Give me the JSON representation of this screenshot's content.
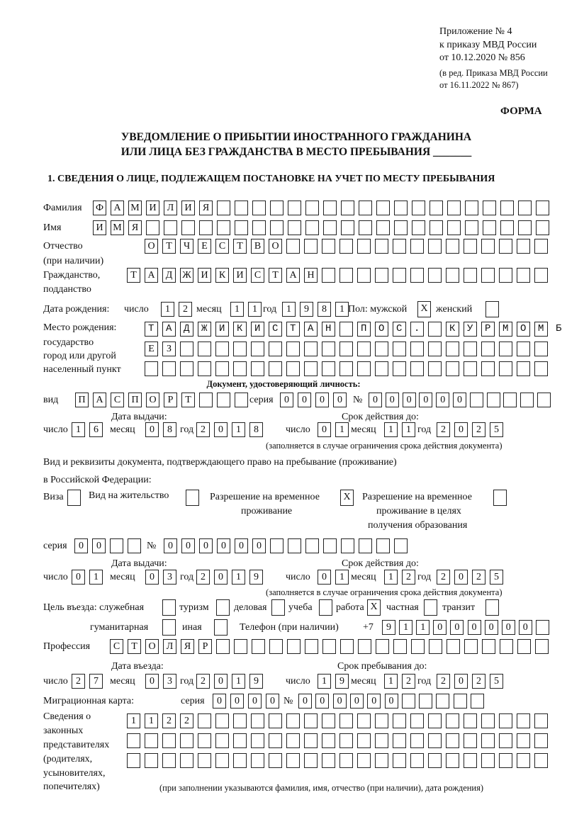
{
  "header": {
    "line1": "Приложение № 4",
    "line2": "к приказу МВД России",
    "line3": "от 10.12.2020 № 856",
    "line4": "(в ред. Приказа МВД России",
    "line5": "от 16.11.2022 № 867)",
    "form": "ФОРМА",
    "title1": "УВЕДОМЛЕНИЕ О ПРИБЫТИИ ИНОСТРАННОГО ГРАЖДАНИНА",
    "title2": "ИЛИ ЛИЦА БЕЗ ГРАЖДАНСТВА В МЕСТО ПРЕБЫВАНИЯ _______",
    "section1": "1. СВЕДЕНИЯ О ЛИЦЕ, ПОДЛЕЖАЩЕМ ПОСТАНОВКЕ НА УЧЕТ ПО МЕСТУ ПРЕБЫВАНИЯ"
  },
  "labels": {
    "surname": "Фамилия",
    "name": "Имя",
    "patronymic": "Отчество",
    "patronymic2": "(при наличии)",
    "citizenship": "Гражданство,",
    "citizenship2": "подданство",
    "birth_date": "Дата рождения:",
    "day": "число",
    "month": "месяц",
    "year": "год",
    "sex": "Пол: мужской",
    "female": "женский",
    "birthplace1": "Место рождения:",
    "birthplace2": "государство",
    "birthplace3": "город или другой",
    "birthplace4": "населенный пункт",
    "id_doc": "Документ, удостоверяющий личность:",
    "kind": "вид",
    "series": "серия",
    "number": "№",
    "issue_date": "Дата выдачи:",
    "expiry": "Срок действия до:",
    "expiry_note": "(заполняется в случае ограничения срока действия документа)",
    "permit1": "Вид и реквизиты документа, подтверждающего право на пребывание (проживание)",
    "permit2": "в Российской Федерации:",
    "visa": "Виза",
    "residence": "Вид на жительство",
    "trp1": "Разрешение на временное",
    "trp2": "проживание",
    "trpe1": "Разрешение на временное",
    "trpe2": "проживание в целях",
    "trpe3": "получения образования",
    "purpose": "Цель въезда: служебная",
    "tourism": "туризм",
    "business": "деловая",
    "study": "учеба",
    "work": "работа",
    "private": "частная",
    "transit": "транзит",
    "humanitarian": "гуманитарная",
    "other": "иная",
    "phone": "Телефон (при наличии)",
    "phone_prefix": "+7",
    "profession": "Профессия",
    "entry_date": "Дата въезда:",
    "stay_until": "Срок пребывания до:",
    "migration_card": "Миграционная карта:",
    "reps1": "Сведения о",
    "reps2": "законных",
    "reps3": "представителях",
    "reps4": "(родителях,",
    "reps5": "усыновителях,",
    "reps6": "попечителях)",
    "reps_note": "(при заполнении указываются фамилия, имя, отчество (при наличии), дата рождения)"
  },
  "fields": {
    "surname": "ФАМИЛИЯ",
    "name": "ИМЯ",
    "patronymic": "ОТЧЕСТВО",
    "citizenship": "ТАДЖИКИСТАН",
    "birth_day": "12",
    "birth_month": "11",
    "birth_year": "1981",
    "sex_male": "X",
    "sex_female": "",
    "birthplace1": "ТАДЖИКИСТАН ПОС. КУРМОМБ",
    "birthplace2": "ЕЗ",
    "birthplace3": "",
    "doc_type": "ПАСПОРТ",
    "doc_series": "0000",
    "doc_number": "000000",
    "doc_issue_day": "16",
    "doc_issue_month": "08",
    "doc_issue_year": "2018",
    "doc_exp_day": "01",
    "doc_exp_month": "11",
    "doc_exp_year": "2025",
    "visa": "",
    "residence": "",
    "trp": "X",
    "trp_edu": "",
    "permit_series": "00",
    "permit_number": "000000",
    "permit_issue_day": "01",
    "permit_issue_month": "03",
    "permit_issue_year": "2019",
    "permit_exp_day": "01",
    "permit_exp_month": "12",
    "permit_exp_year": "2025",
    "p_service": "",
    "p_tourism": "",
    "p_business": "",
    "p_study": "",
    "p_work": "X",
    "p_private": "",
    "p_transit": "",
    "p_humanitarian": "",
    "p_other": "",
    "phone": "911000000",
    "profession": "СТОЛЯР",
    "entry_day": "27",
    "entry_month": "03",
    "entry_year": "2019",
    "stay_day": "19",
    "stay_month": "12",
    "stay_year": "2025",
    "mig_series": "0000",
    "mig_number": "000000",
    "reps1": "1122",
    "reps2": "",
    "reps3": ""
  }
}
